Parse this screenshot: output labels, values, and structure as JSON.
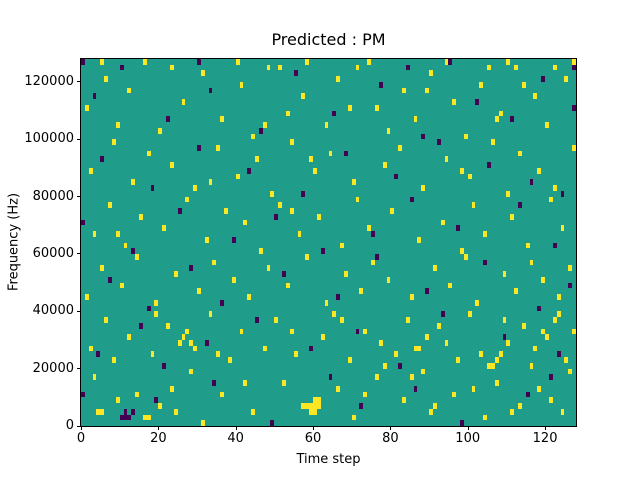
{
  "chart_data": {
    "type": "heatmap",
    "title": "Predicted : PM",
    "xlabel": "Time step",
    "ylabel": "Frequency (Hz)",
    "x_range": [
      0,
      128
    ],
    "y_range": [
      0,
      128000
    ],
    "grid_shape": [
      64,
      128
    ],
    "x_ticks": [
      0,
      20,
      40,
      60,
      80,
      100,
      120
    ],
    "y_ticks": [
      0,
      20000,
      40000,
      60000,
      80000,
      100000,
      120000
    ],
    "legend": "none",
    "grid": false,
    "colormap": {
      "name": "viridis-3-level",
      "background_value_color": "#1f9d8a",
      "values": {
        "1": "#fde725",
        "2": "#440154"
      }
    },
    "cells": [
      [
        4,
        2,
        1
      ],
      [
        5,
        2,
        1
      ],
      [
        9,
        4,
        1
      ],
      [
        16,
        1,
        1
      ],
      [
        17,
        1,
        1
      ],
      [
        20,
        3,
        1
      ],
      [
        23,
        6,
        1
      ],
      [
        28,
        9,
        1
      ],
      [
        31,
        0,
        1
      ],
      [
        36,
        5,
        1
      ],
      [
        44,
        2,
        1
      ],
      [
        52,
        7,
        1
      ],
      [
        57,
        3,
        1
      ],
      [
        58,
        3,
        1
      ],
      [
        59,
        2,
        1
      ],
      [
        59,
        3,
        1
      ],
      [
        60,
        2,
        1
      ],
      [
        60,
        3,
        1
      ],
      [
        60,
        4,
        1
      ],
      [
        61,
        3,
        1
      ],
      [
        61,
        4,
        1
      ],
      [
        66,
        6,
        1
      ],
      [
        70,
        1,
        1
      ],
      [
        76,
        8,
        1
      ],
      [
        83,
        4,
        1
      ],
      [
        88,
        9,
        1
      ],
      [
        90,
        2,
        1
      ],
      [
        96,
        5,
        1
      ],
      [
        104,
        1,
        1
      ],
      [
        107,
        7,
        1
      ],
      [
        113,
        3,
        1
      ],
      [
        118,
        6,
        1
      ],
      [
        124,
        2,
        1
      ],
      [
        126,
        9,
        1
      ],
      [
        2,
        13,
        1
      ],
      [
        6,
        18,
        1
      ],
      [
        8,
        11,
        1
      ],
      [
        12,
        15,
        1
      ],
      [
        18,
        12,
        1
      ],
      [
        22,
        17,
        1
      ],
      [
        25,
        14,
        1
      ],
      [
        26,
        15,
        1
      ],
      [
        27,
        16,
        1
      ],
      [
        28,
        14,
        1
      ],
      [
        29,
        13,
        1
      ],
      [
        33,
        19,
        1
      ],
      [
        38,
        11,
        1
      ],
      [
        41,
        16,
        1
      ],
      [
        47,
        13,
        1
      ],
      [
        50,
        18,
        1
      ],
      [
        55,
        12,
        1
      ],
      [
        62,
        15,
        1
      ],
      [
        65,
        19,
        1
      ],
      [
        69,
        11,
        1
      ],
      [
        73,
        16,
        1
      ],
      [
        77,
        14,
        1
      ],
      [
        81,
        12,
        1
      ],
      [
        84,
        18,
        1
      ],
      [
        86,
        13,
        1
      ],
      [
        87,
        13,
        1
      ],
      [
        89,
        15,
        1
      ],
      [
        92,
        17,
        1
      ],
      [
        97,
        11,
        1
      ],
      [
        100,
        19,
        1
      ],
      [
        103,
        12,
        1
      ],
      [
        105,
        10,
        1
      ],
      [
        106,
        10,
        1
      ],
      [
        107,
        11,
        1
      ],
      [
        108,
        12,
        1
      ],
      [
        110,
        14,
        1
      ],
      [
        114,
        17,
        1
      ],
      [
        117,
        13,
        1
      ],
      [
        120,
        15,
        1
      ],
      [
        122,
        18,
        1
      ],
      [
        125,
        11,
        1
      ],
      [
        127,
        16,
        1
      ],
      [
        1,
        22,
        1
      ],
      [
        5,
        27,
        1
      ],
      [
        10,
        24,
        1
      ],
      [
        14,
        29,
        1
      ],
      [
        19,
        21,
        1
      ],
      [
        24,
        26,
        1
      ],
      [
        30,
        23,
        1
      ],
      [
        34,
        28,
        1
      ],
      [
        39,
        25,
        1
      ],
      [
        43,
        22,
        1
      ],
      [
        48,
        27,
        1
      ],
      [
        53,
        24,
        1
      ],
      [
        58,
        29,
        1
      ],
      [
        63,
        21,
        1
      ],
      [
        68,
        26,
        1
      ],
      [
        72,
        23,
        1
      ],
      [
        75,
        28,
        1
      ],
      [
        79,
        25,
        1
      ],
      [
        85,
        22,
        1
      ],
      [
        91,
        27,
        1
      ],
      [
        95,
        24,
        1
      ],
      [
        99,
        29,
        1
      ],
      [
        102,
        21,
        1
      ],
      [
        109,
        26,
        1
      ],
      [
        112,
        23,
        1
      ],
      [
        116,
        28,
        1
      ],
      [
        119,
        25,
        1
      ],
      [
        123,
        22,
        1
      ],
      [
        126,
        27,
        1
      ],
      [
        3,
        33,
        1
      ],
      [
        7,
        38,
        1
      ],
      [
        11,
        31,
        1
      ],
      [
        15,
        36,
        1
      ],
      [
        21,
        34,
        1
      ],
      [
        27,
        39,
        1
      ],
      [
        32,
        32,
        1
      ],
      [
        37,
        37,
        1
      ],
      [
        42,
        35,
        1
      ],
      [
        46,
        30,
        1
      ],
      [
        51,
        38,
        1
      ],
      [
        56,
        33,
        1
      ],
      [
        61,
        36,
        1
      ],
      [
        67,
        31,
        1
      ],
      [
        71,
        39,
        1
      ],
      [
        74,
        34,
        1
      ],
      [
        80,
        37,
        1
      ],
      [
        87,
        32,
        1
      ],
      [
        93,
        35,
        1
      ],
      [
        98,
        30,
        1
      ],
      [
        101,
        38,
        1
      ],
      [
        104,
        33,
        1
      ],
      [
        111,
        36,
        1
      ],
      [
        115,
        31,
        1
      ],
      [
        121,
        39,
        1
      ],
      [
        124,
        34,
        1
      ],
      [
        2,
        44,
        1
      ],
      [
        8,
        49,
        1
      ],
      [
        13,
        42,
        1
      ],
      [
        17,
        47,
        1
      ],
      [
        23,
        45,
        1
      ],
      [
        29,
        41,
        1
      ],
      [
        35,
        48,
        1
      ],
      [
        40,
        43,
        1
      ],
      [
        45,
        46,
        1
      ],
      [
        49,
        40,
        1
      ],
      [
        54,
        49,
        1
      ],
      [
        60,
        44,
        1
      ],
      [
        64,
        47,
        1
      ],
      [
        70,
        42,
        1
      ],
      [
        78,
        45,
        1
      ],
      [
        82,
        48,
        1
      ],
      [
        88,
        41,
        1
      ],
      [
        94,
        46,
        1
      ],
      [
        100,
        43,
        1
      ],
      [
        106,
        49,
        1
      ],
      [
        110,
        40,
        1
      ],
      [
        113,
        47,
        1
      ],
      [
        118,
        44,
        1
      ],
      [
        122,
        41,
        1
      ],
      [
        127,
        48,
        1
      ],
      [
        1,
        55,
        1
      ],
      [
        6,
        60,
        1
      ],
      [
        9,
        52,
        1
      ],
      [
        12,
        58,
        1
      ],
      [
        16,
        63,
        1
      ],
      [
        20,
        51,
        1
      ],
      [
        26,
        56,
        1
      ],
      [
        31,
        61,
        1
      ],
      [
        36,
        53,
        1
      ],
      [
        41,
        59,
        1
      ],
      [
        44,
        50,
        1
      ],
      [
        48,
        62,
        1
      ],
      [
        53,
        54,
        1
      ],
      [
        57,
        57,
        1
      ],
      [
        63,
        52,
        1
      ],
      [
        66,
        60,
        1
      ],
      [
        69,
        55,
        1
      ],
      [
        74,
        63,
        1
      ],
      [
        79,
        51,
        1
      ],
      [
        83,
        58,
        1
      ],
      [
        86,
        53,
        1
      ],
      [
        90,
        61,
        1
      ],
      [
        96,
        56,
        1
      ],
      [
        99,
        50,
        1
      ],
      [
        103,
        59,
        1
      ],
      [
        108,
        54,
        1
      ],
      [
        112,
        62,
        1
      ],
      [
        117,
        57,
        1
      ],
      [
        120,
        52,
        1
      ],
      [
        125,
        60,
        1
      ],
      [
        127,
        63,
        1
      ],
      [
        5,
        63,
        1
      ],
      [
        23,
        62,
        1
      ],
      [
        40,
        63,
        1
      ],
      [
        51,
        62,
        1
      ],
      [
        58,
        63,
        1
      ],
      [
        71,
        62,
        1
      ],
      [
        94,
        63,
        1
      ],
      [
        105,
        62,
        1
      ],
      [
        110,
        63,
        1
      ],
      [
        122,
        62,
        1
      ],
      [
        3,
        8,
        1
      ],
      [
        14,
        5,
        1
      ],
      [
        19,
        19,
        1
      ],
      [
        24,
        2,
        1
      ],
      [
        35,
        12,
        1
      ],
      [
        42,
        7,
        1
      ],
      [
        54,
        16,
        1
      ],
      [
        67,
        18,
        1
      ],
      [
        73,
        5,
        1
      ],
      [
        78,
        10,
        1
      ],
      [
        85,
        8,
        1
      ],
      [
        91,
        3,
        1
      ],
      [
        94,
        14,
        1
      ],
      [
        101,
        6,
        1
      ],
      [
        109,
        18,
        1
      ],
      [
        111,
        2,
        1
      ],
      [
        116,
        10,
        1
      ],
      [
        119,
        16,
        1
      ],
      [
        121,
        4,
        1
      ],
      [
        123,
        19,
        1
      ],
      [
        33,
        42,
        1
      ],
      [
        47,
        52,
        1
      ],
      [
        59,
        46,
        1
      ],
      [
        76,
        55,
        1
      ],
      [
        89,
        58,
        1
      ],
      [
        98,
        44,
        1
      ],
      [
        107,
        53,
        1
      ],
      [
        114,
        59,
        1
      ],
      [
        9,
        33,
        1
      ],
      [
        54,
        37,
        1
      ],
      [
        0,
        5,
        2
      ],
      [
        10,
        1,
        2
      ],
      [
        11,
        1,
        2
      ],
      [
        11,
        2,
        2
      ],
      [
        12,
        1,
        2
      ],
      [
        13,
        2,
        2
      ],
      [
        19,
        4,
        2
      ],
      [
        34,
        7,
        2
      ],
      [
        49,
        0,
        2
      ],
      [
        64,
        8,
        2
      ],
      [
        72,
        3,
        2
      ],
      [
        86,
        6,
        2
      ],
      [
        98,
        0,
        2
      ],
      [
        115,
        5,
        2
      ],
      [
        121,
        8,
        2
      ],
      [
        4,
        12,
        2
      ],
      [
        15,
        17,
        2
      ],
      [
        21,
        10,
        2
      ],
      [
        32,
        14,
        2
      ],
      [
        45,
        18,
        2
      ],
      [
        59,
        13,
        2
      ],
      [
        71,
        16,
        2
      ],
      [
        82,
        10,
        2
      ],
      [
        93,
        19,
        2
      ],
      [
        109,
        15,
        2
      ],
      [
        123,
        12,
        2
      ],
      [
        7,
        25,
        2
      ],
      [
        17,
        20,
        2
      ],
      [
        28,
        27,
        2
      ],
      [
        36,
        21,
        2
      ],
      [
        52,
        26,
        2
      ],
      [
        66,
        22,
        2
      ],
      [
        76,
        29,
        2
      ],
      [
        89,
        23,
        2
      ],
      [
        104,
        28,
        2
      ],
      [
        118,
        20,
        2
      ],
      [
        126,
        24,
        2
      ],
      [
        0,
        35,
        2
      ],
      [
        13,
        30,
        2
      ],
      [
        25,
        37,
        2
      ],
      [
        39,
        32,
        2
      ],
      [
        50,
        36,
        2
      ],
      [
        62,
        30,
        2
      ],
      [
        75,
        33,
        2
      ],
      [
        85,
        39,
        2
      ],
      [
        97,
        34,
        2
      ],
      [
        113,
        38,
        2
      ],
      [
        122,
        31,
        2
      ],
      [
        5,
        46,
        2
      ],
      [
        18,
        41,
        2
      ],
      [
        30,
        48,
        2
      ],
      [
        43,
        44,
        2
      ],
      [
        57,
        40,
        2
      ],
      [
        68,
        47,
        2
      ],
      [
        81,
        43,
        2
      ],
      [
        92,
        49,
        2
      ],
      [
        105,
        45,
        2
      ],
      [
        116,
        42,
        2
      ],
      [
        124,
        40,
        2
      ],
      [
        3,
        57,
        2
      ],
      [
        10,
        62,
        2
      ],
      [
        22,
        53,
        2
      ],
      [
        33,
        58,
        2
      ],
      [
        46,
        51,
        2
      ],
      [
        55,
        61,
        2
      ],
      [
        65,
        54,
        2
      ],
      [
        77,
        59,
        2
      ],
      [
        88,
        50,
        2
      ],
      [
        95,
        63,
        2
      ],
      [
        102,
        56,
        2
      ],
      [
        111,
        53,
        2
      ],
      [
        119,
        60,
        2
      ],
      [
        127,
        55,
        2
      ],
      [
        0,
        63,
        2
      ],
      [
        127,
        62,
        2
      ],
      [
        30,
        63,
        2
      ],
      [
        84,
        62,
        2
      ]
    ]
  }
}
